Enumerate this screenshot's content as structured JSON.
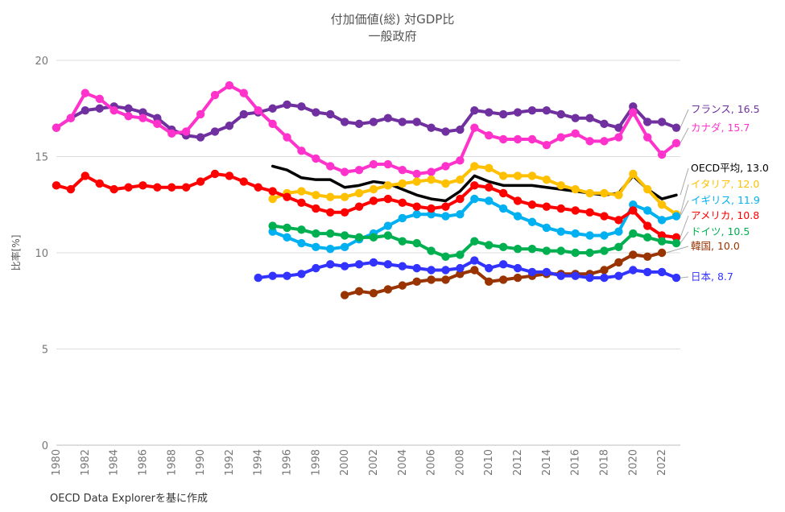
{
  "chart_data": {
    "type": "line",
    "title": "付加価値(総) 対GDP比",
    "subtitle": "一般政府",
    "xlabel": "",
    "ylabel": "比率[%]",
    "ylim": [
      0,
      20
    ],
    "xlim": [
      1980,
      2023
    ],
    "yticks": [
      0,
      5,
      10,
      15,
      20
    ],
    "xticks": [
      1980,
      1982,
      1984,
      1986,
      1988,
      1990,
      1992,
      1994,
      1996,
      1998,
      2000,
      2002,
      2004,
      2006,
      2008,
      2010,
      2012,
      2014,
      2016,
      2018,
      2020,
      2022
    ],
    "grid": true,
    "series": [
      {
        "name": "フランス",
        "label": "フランス, 16.5",
        "color": "#7030a0",
        "markers": true,
        "start": 1980,
        "values": [
          16.5,
          17.0,
          17.4,
          17.5,
          17.6,
          17.5,
          17.3,
          17.0,
          16.4,
          16.1,
          16.0,
          16.3,
          16.6,
          17.2,
          17.3,
          17.5,
          17.7,
          17.6,
          17.3,
          17.2,
          16.8,
          16.7,
          16.8,
          17.0,
          16.8,
          16.8,
          16.5,
          16.3,
          16.4,
          17.4,
          17.3,
          17.2,
          17.3,
          17.4,
          17.4,
          17.2,
          17.0,
          17.0,
          16.7,
          16.5,
          17.6,
          16.8,
          16.8,
          16.5
        ]
      },
      {
        "name": "カナダ",
        "label": "カナダ, 15.7",
        "color": "#ff33cc",
        "markers": true,
        "start": 1980,
        "values": [
          16.5,
          17.0,
          18.3,
          18.0,
          17.4,
          17.1,
          17.0,
          16.7,
          16.2,
          16.3,
          17.2,
          18.2,
          18.7,
          18.3,
          17.4,
          16.7,
          16.0,
          15.3,
          14.9,
          14.5,
          14.2,
          14.3,
          14.6,
          14.6,
          14.3,
          14.1,
          14.2,
          14.5,
          14.8,
          16.5,
          16.1,
          15.9,
          15.9,
          15.9,
          15.6,
          16.0,
          16.2,
          15.8,
          15.8,
          16.0,
          17.3,
          16.0,
          15.1,
          15.7
        ]
      },
      {
        "name": "OECD平均",
        "label": "OECD平均, 13.0",
        "color": "#000000",
        "markers": false,
        "start": 1995,
        "values": [
          14.5,
          14.3,
          13.9,
          13.8,
          13.8,
          13.4,
          13.5,
          13.7,
          13.6,
          13.3,
          13.0,
          12.8,
          12.7,
          13.2,
          14.0,
          13.7,
          13.5,
          13.5,
          13.5,
          13.4,
          13.3,
          13.2,
          13.1,
          13.0,
          13.1,
          14.0,
          13.3,
          12.8,
          13.0
        ]
      },
      {
        "name": "イタリア",
        "label": "イタリア, 12.0",
        "color": "#ffc000",
        "markers": true,
        "start": 1995,
        "values": [
          12.8,
          13.1,
          13.2,
          13.0,
          12.9,
          12.9,
          13.1,
          13.3,
          13.5,
          13.6,
          13.7,
          13.8,
          13.6,
          13.8,
          14.5,
          14.4,
          14.0,
          14.0,
          14.0,
          13.8,
          13.5,
          13.3,
          13.1,
          13.1,
          13.0,
          14.1,
          13.3,
          12.5,
          12.0
        ]
      },
      {
        "name": "イギリス",
        "label": "イギリス, 11.9",
        "color": "#00b0f0",
        "markers": true,
        "start": 1995,
        "values": [
          11.1,
          10.8,
          10.5,
          10.3,
          10.2,
          10.3,
          10.7,
          11.0,
          11.4,
          11.8,
          12.0,
          12.0,
          11.9,
          12.0,
          12.8,
          12.7,
          12.3,
          11.9,
          11.6,
          11.3,
          11.1,
          11.0,
          10.9,
          10.9,
          11.1,
          12.5,
          12.2,
          11.7,
          11.9
        ]
      },
      {
        "name": "アメリカ",
        "label": "アメリカ, 10.8",
        "color": "#ff0000",
        "markers": true,
        "start": 1980,
        "values": [
          13.5,
          13.3,
          14.0,
          13.6,
          13.3,
          13.4,
          13.5,
          13.4,
          13.4,
          13.4,
          13.7,
          14.1,
          14.0,
          13.7,
          13.4,
          13.2,
          12.9,
          12.6,
          12.3,
          12.1,
          12.1,
          12.4,
          12.7,
          12.8,
          12.6,
          12.4,
          12.3,
          12.4,
          12.8,
          13.5,
          13.4,
          13.1,
          12.7,
          12.5,
          12.4,
          12.3,
          12.2,
          12.1,
          11.9,
          11.7,
          12.2,
          11.4,
          10.9,
          10.8
        ]
      },
      {
        "name": "ドイツ",
        "label": "ドイツ, 10.5",
        "color": "#00b050",
        "markers": true,
        "start": 1995,
        "values": [
          11.4,
          11.3,
          11.2,
          11.0,
          11.0,
          10.9,
          10.8,
          10.8,
          10.9,
          10.6,
          10.5,
          10.1,
          9.8,
          9.9,
          10.6,
          10.4,
          10.3,
          10.2,
          10.2,
          10.1,
          10.1,
          10.0,
          10.0,
          10.1,
          10.3,
          11.0,
          10.8,
          10.6,
          10.5
        ]
      },
      {
        "name": "韓国",
        "label": "韓国, 10.0",
        "color": "#993300",
        "markers": true,
        "start": 2000,
        "values": [
          7.8,
          8.0,
          7.9,
          8.1,
          8.3,
          8.5,
          8.6,
          8.6,
          8.9,
          9.1,
          8.5,
          8.6,
          8.7,
          8.8,
          8.9,
          8.9,
          8.9,
          8.9,
          9.1,
          9.5,
          9.9,
          9.8,
          10.0
        ]
      },
      {
        "name": "日本",
        "label": "日本, 8.7",
        "color": "#3333ff",
        "markers": true,
        "start": 1994,
        "values": [
          8.7,
          8.8,
          8.8,
          8.9,
          9.2,
          9.4,
          9.3,
          9.4,
          9.5,
          9.4,
          9.3,
          9.2,
          9.1,
          9.1,
          9.2,
          9.6,
          9.2,
          9.4,
          9.2,
          9.0,
          9.0,
          8.8,
          8.8,
          8.7,
          8.7,
          8.8,
          9.1,
          9.0,
          9.0,
          8.7
        ]
      }
    ]
  },
  "source_note": "OECD Data Explorerを基に作成"
}
